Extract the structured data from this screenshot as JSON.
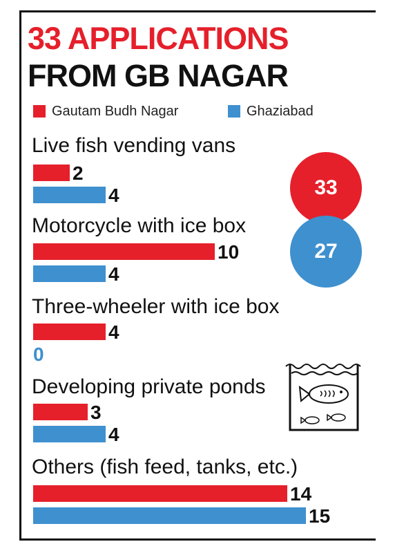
{
  "title_line1": "33 APPLICATIONS",
  "title_line2": "FROM GB NAGAR",
  "colors": {
    "gautam_budh_nagar": "#e5202b",
    "ghaziabad": "#3f90cf",
    "text": "#111111"
  },
  "chart_data": {
    "type": "bar",
    "orientation": "horizontal",
    "categories": [
      "Live fish vending vans",
      "Motorcycle with ice box",
      "Three-wheeler with ice box",
      "Developing private ponds",
      "Others (fish feed, tanks, etc.)"
    ],
    "series": [
      {
        "name": "Gautam Budh Nagar",
        "values": [
          2,
          10,
          4,
          3,
          14
        ]
      },
      {
        "name": "Ghaziabad",
        "values": [
          4,
          4,
          0,
          4,
          15
        ]
      }
    ],
    "totals": {
      "gautam_budh_nagar": "33",
      "ghaziabad": "27"
    },
    "xlim": [
      0,
      15
    ],
    "grid": false,
    "legend": "top-left"
  },
  "icon": "fish-tank-icon"
}
